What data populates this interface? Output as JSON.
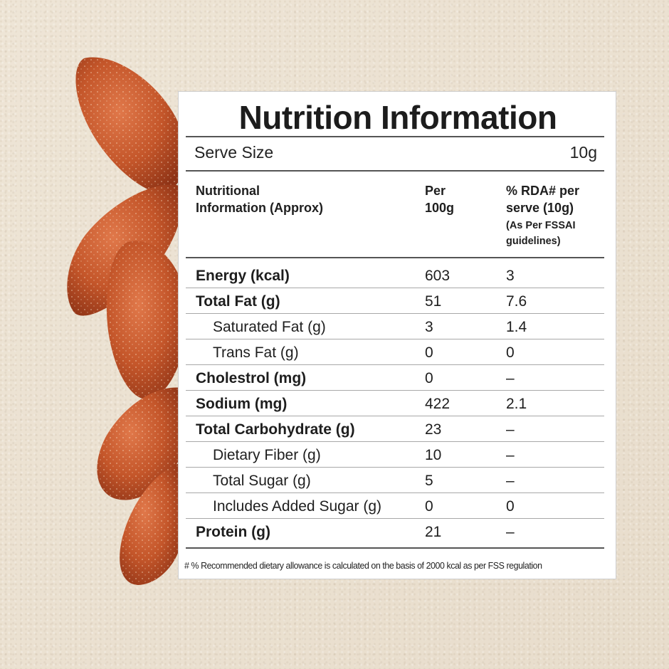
{
  "title": "Nutrition Information",
  "serve": {
    "label": "Serve Size",
    "value": "10g"
  },
  "headers": {
    "col1_line1": "Nutritional",
    "col1_line2": "Information (Approx)",
    "col2_line1": "Per",
    "col2_line2": "100g",
    "col3_line1": "% RDA# per",
    "col3_line2": "serve (10g)",
    "col3_note1": "(As Per FSSAI",
    "col3_note2": "guidelines)"
  },
  "rows": [
    {
      "name": "Energy (kcal)",
      "per100": "603",
      "rda": "3",
      "bold": true,
      "indent": false
    },
    {
      "name": "Total Fat (g)",
      "per100": "51",
      "rda": "7.6",
      "bold": true,
      "indent": false
    },
    {
      "name": "Saturated Fat (g)",
      "per100": "3",
      "rda": "1.4",
      "bold": false,
      "indent": true
    },
    {
      "name": "Trans Fat (g)",
      "per100": "0",
      "rda": "0",
      "bold": false,
      "indent": true
    },
    {
      "name": "Cholestrol (mg)",
      "per100": "0",
      "rda": "–",
      "bold": true,
      "indent": false
    },
    {
      "name": "Sodium (mg)",
      "per100": "422",
      "rda": "2.1",
      "bold": true,
      "indent": false
    },
    {
      "name": "Total Carbohydrate (g)",
      "per100": "23",
      "rda": "–",
      "bold": true,
      "indent": false
    },
    {
      "name": "Dietary Fiber (g)",
      "per100": "10",
      "rda": "–",
      "bold": false,
      "indent": true
    },
    {
      "name": "Total Sugar (g)",
      "per100": "5",
      "rda": "–",
      "bold": false,
      "indent": true
    },
    {
      "name": "Includes Added Sugar (g)",
      "per100": "0",
      "rda": "0",
      "bold": false,
      "indent": true
    },
    {
      "name": "Protein (g)",
      "per100": "21",
      "rda": "–",
      "bold": true,
      "indent": false
    }
  ],
  "footnote": "# % Recommended dietary allowance  is calculated on the basis of 2000 kcal as per FSS regulation",
  "colors": {
    "almond": "#c4562a",
    "almond_dark": "#8e3316",
    "background": "#ece2d2",
    "panel": "#ffffff"
  }
}
